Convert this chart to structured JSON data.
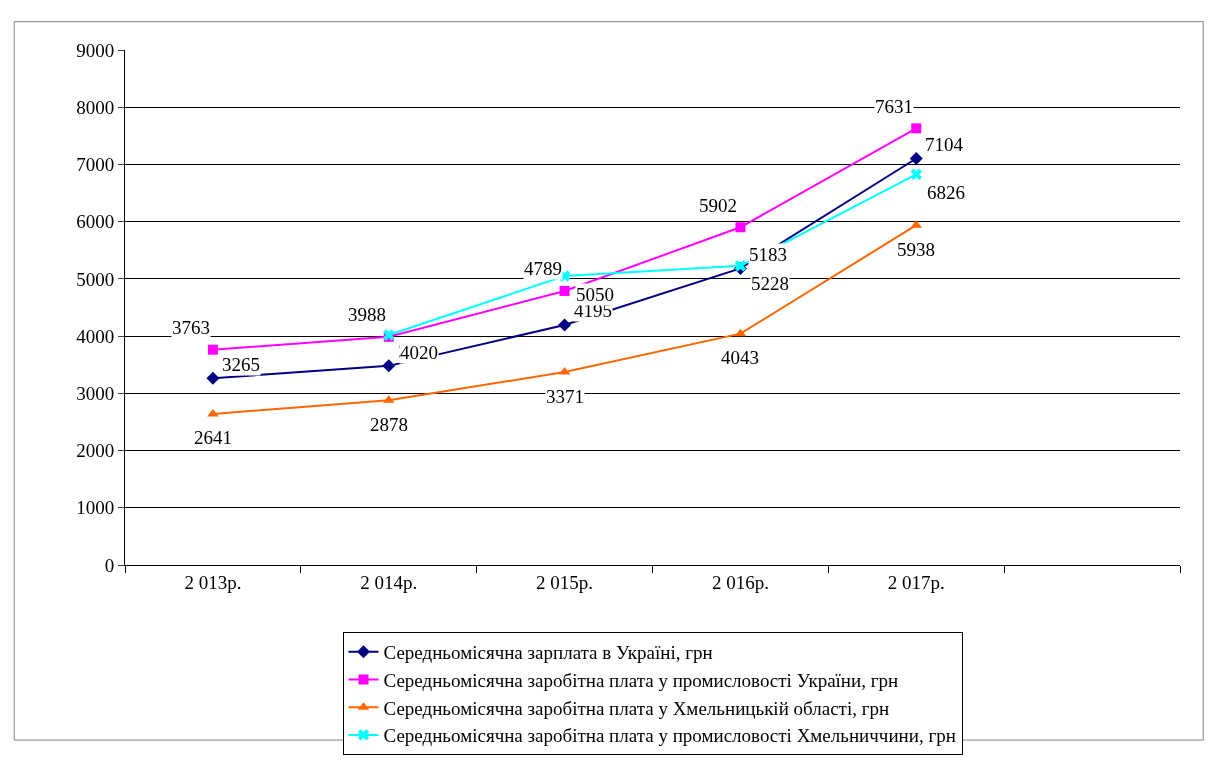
{
  "chart_data": {
    "type": "line",
    "categories": [
      "2 013р.",
      "2 014р.",
      "2 015р.",
      "2 016р.",
      "2 017р.",
      null
    ],
    "series": [
      {
        "name": "Середньомісячна зарплата в Україні, грн",
        "color": "#000080",
        "marker": "diamond",
        "values": [
          3265,
          3480,
          4195,
          5183,
          7104,
          null
        ]
      },
      {
        "name": "Середньомісячна заробітна плата у промисловості України, грн",
        "color": "#ff00ff",
        "marker": "square",
        "values": [
          3763,
          3988,
          4789,
          5902,
          7631,
          null
        ]
      },
      {
        "name": "Середньомісячна заробітна плата у Хмельницькій області, грн",
        "color": "#ff6600",
        "marker": "triangle",
        "values": [
          2641,
          2878,
          3371,
          4043,
          5938,
          null
        ]
      },
      {
        "name": "Середньомісячна заробітна плата у промисловості Хмельниччини, грн",
        "color": "#00ffff",
        "marker": "cross",
        "values": [
          null,
          4020,
          5050,
          5228,
          6826,
          null
        ]
      }
    ],
    "ylim": [
      0,
      9000
    ],
    "yticks": [
      0,
      1000,
      2000,
      3000,
      4000,
      5000,
      6000,
      7000,
      8000,
      9000
    ],
    "grid": "y",
    "legend": "bottom",
    "data_labels": true
  }
}
